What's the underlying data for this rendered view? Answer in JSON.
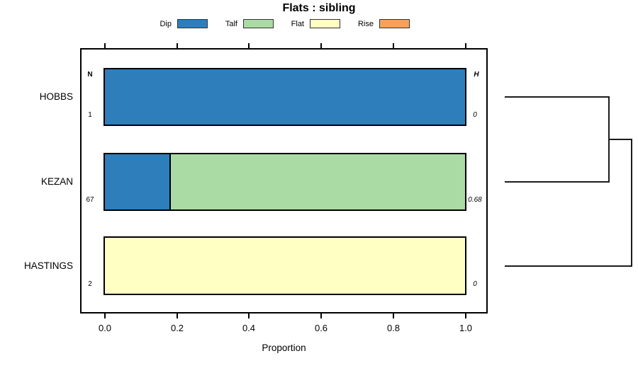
{
  "title": "Flats : sibling",
  "legend": {
    "items": [
      {
        "label": "Dip",
        "color": "#2E7EBC"
      },
      {
        "label": "Talf",
        "color": "#ABDBA4"
      },
      {
        "label": "Flat",
        "color": "#FFFFC4"
      },
      {
        "label": "Rise",
        "color": "#F9A15B"
      }
    ]
  },
  "axis": {
    "xlabel": "Proportion",
    "tick_labels": [
      "0.0",
      "0.2",
      "0.4",
      "0.6",
      "0.8",
      "1.0"
    ]
  },
  "columns": {
    "n_header": "N",
    "h_header": "H"
  },
  "rows": [
    {
      "label": "HOBBS",
      "n": "1",
      "h": "0",
      "segments": [
        {
          "name": "Dip",
          "value": 1.0
        }
      ]
    },
    {
      "label": "KEZAN",
      "n": "67",
      "h": "0.68",
      "segments": [
        {
          "name": "Dip",
          "value": 0.18
        },
        {
          "name": "Talf",
          "value": 0.82
        }
      ]
    },
    {
      "label": "HASTINGS",
      "n": "2",
      "h": "0",
      "segments": [
        {
          "name": "Flat",
          "value": 1.0
        }
      ]
    }
  ],
  "chart_data": {
    "type": "bar",
    "subtype": "horizontal-stacked-proportion",
    "title": "Flats : sibling",
    "xlabel": "Proportion",
    "xlim": [
      0,
      1
    ],
    "xticks": [
      0.0,
      0.2,
      0.4,
      0.6,
      0.8,
      1.0
    ],
    "grid": false,
    "legend_position": "top",
    "categories": [
      "HOBBS",
      "KEZAN",
      "HASTINGS"
    ],
    "series": [
      {
        "name": "Dip",
        "color": "#2E7EBC",
        "values": [
          1.0,
          0.18,
          0
        ]
      },
      {
        "name": "Talf",
        "color": "#ABDBA4",
        "values": [
          0,
          0.82,
          0
        ]
      },
      {
        "name": "Flat",
        "color": "#FFFFC4",
        "values": [
          0,
          0,
          1.0
        ]
      },
      {
        "name": "Rise",
        "color": "#F9A15B",
        "values": [
          0,
          0,
          0
        ]
      }
    ],
    "annotations": {
      "N": [
        "1",
        "67",
        "2"
      ],
      "H": [
        "0",
        "0.68",
        "0"
      ]
    },
    "dendrogram": {
      "side": "right",
      "leaves": [
        "HOBBS",
        "KEZAN",
        "HASTINGS"
      ],
      "merges": [
        {
          "a": "leaf:0",
          "b": "leaf:1",
          "height": 0.82
        },
        {
          "a": "merge:0",
          "b": "leaf:2",
          "height": 1.0
        }
      ]
    }
  },
  "colors": {
    "bar_border": "#000000",
    "panel_border": "#000000",
    "dendrogram_line": "#1c1c1c",
    "background": "#ffffff"
  }
}
